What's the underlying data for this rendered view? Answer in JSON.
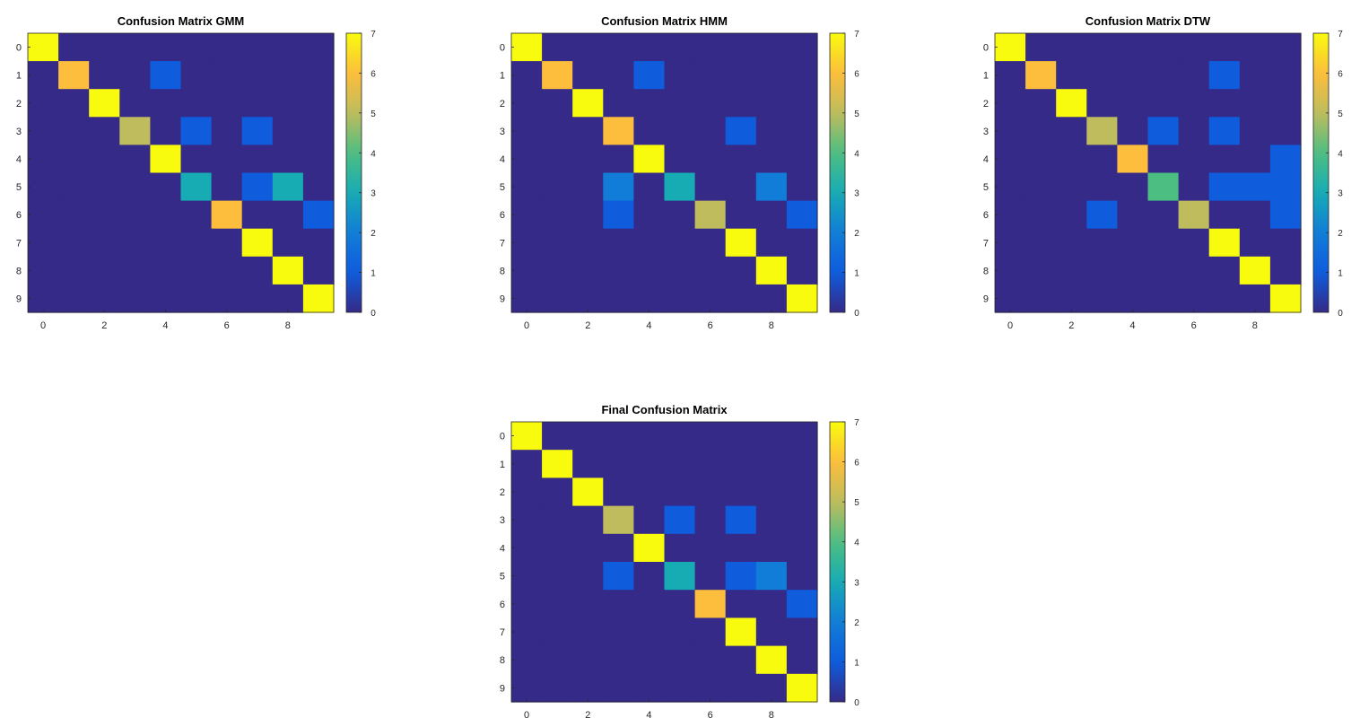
{
  "figure": {
    "colormap": "parula",
    "background": "#ffffff"
  },
  "chart_data": [
    {
      "type": "heatmap",
      "title": "Confusion Matrix GMM",
      "x_ticks": [
        "0",
        "2",
        "4",
        "6",
        "8"
      ],
      "y_ticks": [
        "0",
        "1",
        "2",
        "3",
        "4",
        "5",
        "6",
        "7",
        "8",
        "9"
      ],
      "colorbar_ticks": [
        "0",
        "1",
        "2",
        "3",
        "4",
        "5",
        "6",
        "7"
      ],
      "clim": [
        0,
        7
      ],
      "matrix": [
        [
          7,
          0,
          0,
          0,
          0,
          0,
          0,
          0,
          0,
          0
        ],
        [
          0,
          6,
          0,
          0,
          1,
          0,
          0,
          0,
          0,
          0
        ],
        [
          0,
          0,
          7,
          0,
          0,
          0,
          0,
          0,
          0,
          0
        ],
        [
          0,
          0,
          0,
          5,
          0,
          1,
          0,
          1,
          0,
          0
        ],
        [
          0,
          0,
          0,
          0,
          7,
          0,
          0,
          0,
          0,
          0
        ],
        [
          0,
          0,
          0,
          0,
          0,
          3,
          0,
          1,
          3,
          0
        ],
        [
          0,
          0,
          0,
          0,
          0,
          0,
          6,
          0,
          0,
          1
        ],
        [
          0,
          0,
          0,
          0,
          0,
          0,
          0,
          7,
          0,
          0
        ],
        [
          0,
          0,
          0,
          0,
          0,
          0,
          0,
          0,
          7,
          0
        ],
        [
          0,
          0,
          0,
          0,
          0,
          0,
          0,
          0,
          0,
          7
        ]
      ]
    },
    {
      "type": "heatmap",
      "title": "Confusion Matrix HMM",
      "x_ticks": [
        "0",
        "2",
        "4",
        "6",
        "8"
      ],
      "y_ticks": [
        "0",
        "1",
        "2",
        "3",
        "4",
        "5",
        "6",
        "7",
        "8",
        "9"
      ],
      "colorbar_ticks": [
        "0",
        "1",
        "2",
        "3",
        "4",
        "5",
        "6",
        "7"
      ],
      "clim": [
        0,
        7
      ],
      "matrix": [
        [
          7,
          0,
          0,
          0,
          0,
          0,
          0,
          0,
          0,
          0
        ],
        [
          0,
          6,
          0,
          0,
          1,
          0,
          0,
          0,
          0,
          0
        ],
        [
          0,
          0,
          7,
          0,
          0,
          0,
          0,
          0,
          0,
          0
        ],
        [
          0,
          0,
          0,
          6,
          0,
          0,
          0,
          1,
          0,
          0
        ],
        [
          0,
          0,
          0,
          0,
          7,
          0,
          0,
          0,
          0,
          0
        ],
        [
          0,
          0,
          0,
          2,
          0,
          3,
          0,
          0,
          2,
          0
        ],
        [
          0,
          0,
          0,
          1,
          0,
          0,
          5,
          0,
          0,
          1
        ],
        [
          0,
          0,
          0,
          0,
          0,
          0,
          0,
          7,
          0,
          0
        ],
        [
          0,
          0,
          0,
          0,
          0,
          0,
          0,
          0,
          7,
          0
        ],
        [
          0,
          0,
          0,
          0,
          0,
          0,
          0,
          0,
          0,
          7
        ]
      ]
    },
    {
      "type": "heatmap",
      "title": "Confusion Matrix DTW",
      "x_ticks": [
        "0",
        "2",
        "4",
        "6",
        "8"
      ],
      "y_ticks": [
        "0",
        "1",
        "2",
        "3",
        "4",
        "5",
        "6",
        "7",
        "8",
        "9"
      ],
      "colorbar_ticks": [
        "0",
        "1",
        "2",
        "3",
        "4",
        "5",
        "6",
        "7"
      ],
      "clim": [
        0,
        7
      ],
      "matrix": [
        [
          7,
          0,
          0,
          0,
          0,
          0,
          0,
          0,
          0,
          0
        ],
        [
          0,
          6,
          0,
          0,
          0,
          0,
          0,
          1,
          0,
          0
        ],
        [
          0,
          0,
          7,
          0,
          0,
          0,
          0,
          0,
          0,
          0
        ],
        [
          0,
          0,
          0,
          5,
          0,
          1,
          0,
          1,
          0,
          0
        ],
        [
          0,
          0,
          0,
          0,
          6,
          0,
          0,
          0,
          0,
          1
        ],
        [
          0,
          0,
          0,
          0,
          0,
          4,
          0,
          1,
          1,
          1
        ],
        [
          0,
          0,
          0,
          1,
          0,
          0,
          5,
          0,
          0,
          1
        ],
        [
          0,
          0,
          0,
          0,
          0,
          0,
          0,
          7,
          0,
          0
        ],
        [
          0,
          0,
          0,
          0,
          0,
          0,
          0,
          0,
          7,
          0
        ],
        [
          0,
          0,
          0,
          0,
          0,
          0,
          0,
          0,
          0,
          7
        ]
      ]
    },
    {
      "type": "heatmap",
      "title": "Final Confusion Matrix",
      "x_ticks": [
        "0",
        "2",
        "4",
        "6",
        "8"
      ],
      "y_ticks": [
        "0",
        "1",
        "2",
        "3",
        "4",
        "5",
        "6",
        "7",
        "8",
        "9"
      ],
      "colorbar_ticks": [
        "0",
        "1",
        "2",
        "3",
        "4",
        "5",
        "6",
        "7"
      ],
      "clim": [
        0,
        7
      ],
      "matrix": [
        [
          7,
          0,
          0,
          0,
          0,
          0,
          0,
          0,
          0,
          0
        ],
        [
          0,
          7,
          0,
          0,
          0,
          0,
          0,
          0,
          0,
          0
        ],
        [
          0,
          0,
          7,
          0,
          0,
          0,
          0,
          0,
          0,
          0
        ],
        [
          0,
          0,
          0,
          5,
          0,
          1,
          0,
          1,
          0,
          0
        ],
        [
          0,
          0,
          0,
          0,
          7,
          0,
          0,
          0,
          0,
          0
        ],
        [
          0,
          0,
          0,
          1,
          0,
          3,
          0,
          1,
          2,
          0
        ],
        [
          0,
          0,
          0,
          0,
          0,
          0,
          6,
          0,
          0,
          1
        ],
        [
          0,
          0,
          0,
          0,
          0,
          0,
          0,
          7,
          0,
          0
        ],
        [
          0,
          0,
          0,
          0,
          0,
          0,
          0,
          0,
          7,
          0
        ],
        [
          0,
          0,
          0,
          0,
          0,
          0,
          0,
          0,
          0,
          7
        ]
      ]
    }
  ]
}
